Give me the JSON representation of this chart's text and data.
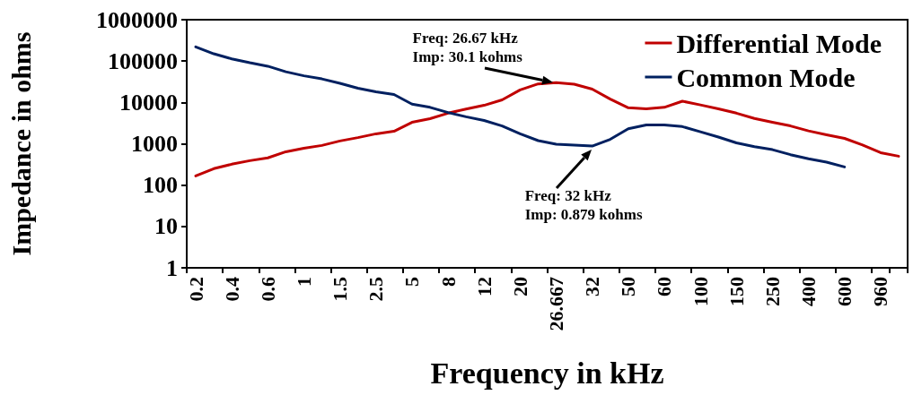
{
  "chart_data": {
    "type": "line",
    "xlabel": "Frequency in kHz",
    "ylabel": "Impedance in ohms",
    "categories": [
      "0.2",
      null,
      "0.4",
      null,
      "0.6",
      null,
      "1",
      null,
      "1.5",
      null,
      "2.5",
      null,
      "5",
      null,
      "8",
      null,
      "12",
      null,
      "20",
      null,
      "26.667",
      null,
      "32",
      null,
      "50",
      null,
      "60",
      null,
      "100",
      null,
      "150",
      null,
      "250",
      null,
      "400",
      null,
      "600",
      null,
      "960",
      null
    ],
    "series": [
      {
        "name": "Differential Mode",
        "color": "#c00000",
        "values": [
          167,
          250,
          320,
          390,
          455,
          640,
          780,
          910,
          1170,
          1410,
          1740,
          2000,
          3300,
          4050,
          5500,
          6900,
          8500,
          11500,
          20000,
          28000,
          30100,
          27500,
          21000,
          12000,
          7400,
          7000,
          7600,
          10700,
          8700,
          7000,
          5500,
          4100,
          3300,
          2700,
          2050,
          1650,
          1350,
          930,
          610,
          500
        ]
      },
      {
        "name": "Common Mode",
        "color": "#002060",
        "values": [
          220000,
          150000,
          113000,
          91000,
          75000,
          55000,
          44000,
          37000,
          29000,
          22000,
          18000,
          15500,
          9100,
          7600,
          5700,
          4500,
          3650,
          2700,
          1740,
          1190,
          980,
          930,
          879,
          1280,
          2300,
          2850,
          2850,
          2600,
          1950,
          1450,
          1050,
          850,
          720,
          545,
          435,
          360,
          275,
          null,
          null,
          null
        ]
      }
    ],
    "log": "y",
    "ylim": [
      1,
      1000000
    ],
    "yticks": [
      1,
      10,
      100,
      1000,
      10000,
      100000,
      1000000
    ],
    "grid": false,
    "legend": "top right",
    "marker": "none",
    "line_style": "solid",
    "annotations": [
      {
        "text": "Freq: 26.67 kHz\nImp: 30.1 kohms",
        "x": "26.667",
        "y": 30100
      },
      {
        "text": "Freq: 32 kHz\nImp: 0.879 kohms",
        "x": "32",
        "y": 879
      }
    ]
  }
}
